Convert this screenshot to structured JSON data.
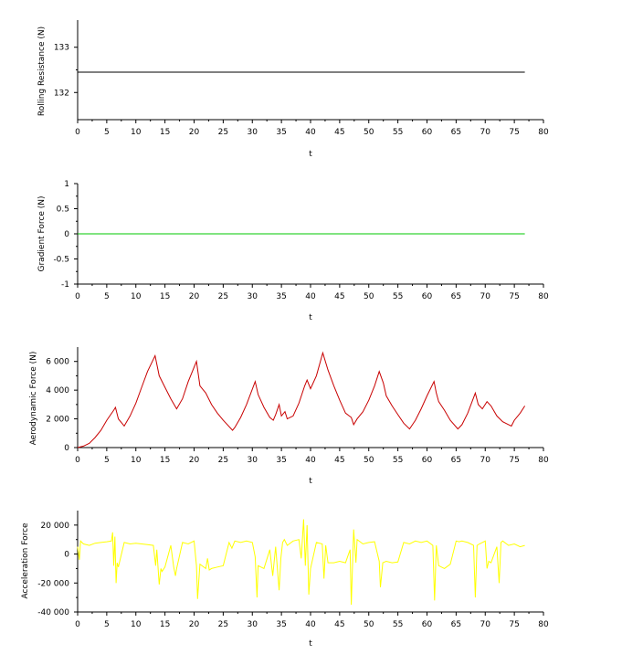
{
  "chart_data": [
    {
      "type": "line",
      "xlabel": "t",
      "ylabel": "Rolling Resistance (N)",
      "xlim": [
        0,
        80
      ],
      "ylim": [
        131.4,
        133.6
      ],
      "xticks": [
        0,
        5,
        10,
        15,
        20,
        25,
        30,
        35,
        40,
        45,
        50,
        55,
        60,
        65,
        70,
        75,
        80
      ],
      "yticks": [
        132,
        133
      ],
      "ytick_labels": [
        "132",
        "133"
      ],
      "color": "#000000",
      "series": [
        {
          "x": [
            0,
            76.8
          ],
          "y": [
            132.45,
            132.45
          ]
        }
      ]
    },
    {
      "type": "line",
      "xlabel": "t",
      "ylabel": "Gradient Force (N)",
      "xlim": [
        0,
        80
      ],
      "ylim": [
        -1,
        1
      ],
      "xticks": [
        0,
        5,
        10,
        15,
        20,
        25,
        30,
        35,
        40,
        45,
        50,
        55,
        60,
        65,
        70,
        75,
        80
      ],
      "yticks": [
        -1,
        -0.5,
        0,
        0.5,
        1
      ],
      "ytick_labels": [
        "-1",
        "-0.5",
        "0",
        "0.5",
        "1"
      ],
      "color": "#00c800",
      "series": [
        {
          "x": [
            0,
            76.8
          ],
          "y": [
            0,
            0
          ]
        }
      ]
    },
    {
      "type": "line",
      "xlabel": "t",
      "ylabel": "Aerodynamic Force (N)",
      "xlim": [
        0,
        80
      ],
      "ylim": [
        0,
        7000
      ],
      "xticks": [
        0,
        5,
        10,
        15,
        20,
        25,
        30,
        35,
        40,
        45,
        50,
        55,
        60,
        65,
        70,
        75,
        80
      ],
      "yticks": [
        0,
        2000,
        4000,
        6000
      ],
      "ytick_labels": [
        "0",
        "2 000",
        "4 000",
        "6 000"
      ],
      "color": "#c80000",
      "series": [
        {
          "x": [
            0,
            1,
            2,
            3,
            4,
            5,
            6.2,
            6.5,
            7,
            8,
            9,
            10,
            11,
            12,
            13.3,
            14,
            15,
            16,
            17,
            18,
            19,
            20.4,
            21,
            22,
            23,
            24,
            25,
            26.6,
            27,
            28,
            29,
            30.5,
            31,
            32,
            33,
            33.6,
            34,
            34.6,
            35,
            35.6,
            36,
            37,
            38,
            39,
            39.4,
            40,
            41,
            42.1,
            43,
            44,
            45,
            46,
            47,
            47.4,
            48,
            49,
            50,
            51,
            51.8,
            52.5,
            53,
            54,
            55,
            56,
            57,
            58,
            59,
            60,
            61.2,
            61.6,
            62,
            63,
            64,
            65.3,
            66,
            67,
            68.3,
            68.8,
            69.5,
            70.3,
            71,
            72,
            73,
            74,
            74.5,
            75,
            76,
            76.8
          ],
          "y": [
            0,
            100,
            300,
            700,
            1200,
            1900,
            2600,
            2800,
            2000,
            1500,
            2200,
            3100,
            4200,
            5300,
            6400,
            5000,
            4200,
            3400,
            2700,
            3400,
            4600,
            6000,
            4300,
            3800,
            3000,
            2400,
            1900,
            1200,
            1400,
            2100,
            3000,
            4600,
            3700,
            2800,
            2100,
            1900,
            2300,
            3000,
            2200,
            2500,
            2000,
            2200,
            3100,
            4300,
            4700,
            4100,
            5000,
            6600,
            5400,
            4300,
            3300,
            2400,
            2100,
            1600,
            2000,
            2500,
            3300,
            4300,
            5300,
            4500,
            3600,
            2900,
            2300,
            1700,
            1300,
            1900,
            2700,
            3600,
            4600,
            3800,
            3200,
            2600,
            1900,
            1300,
            1600,
            2400,
            3800,
            3000,
            2700,
            3200,
            2900,
            2200,
            1800,
            1600,
            1500,
            1900,
            2400,
            2900
          ]
        }
      ]
    },
    {
      "type": "line",
      "xlabel": "t",
      "ylabel": "Acceleration Force",
      "xlim": [
        0,
        80
      ],
      "ylim": [
        -40000,
        30000
      ],
      "xticks": [
        0,
        5,
        10,
        15,
        20,
        25,
        30,
        35,
        40,
        45,
        50,
        55,
        60,
        65,
        70,
        75,
        80
      ],
      "yticks": [
        -40000,
        -20000,
        0,
        20000
      ],
      "ytick_labels": [
        "-40 000",
        "-20 000",
        "0",
        "20 000"
      ],
      "color": "#ffff00",
      "series": [
        {
          "x": [
            0,
            0.3,
            0.5,
            1,
            2,
            3,
            4,
            5,
            5.8,
            6,
            6.2,
            6.4,
            6.6,
            6.8,
            7,
            8,
            9,
            10,
            11,
            12,
            13,
            13.4,
            13.6,
            14,
            14.3,
            14.5,
            15,
            16,
            16.5,
            16.8,
            17,
            18,
            19,
            20,
            20.4,
            20.6,
            21,
            22,
            22.3,
            22.6,
            23,
            24,
            25,
            26,
            26.5,
            27,
            28,
            29,
            30,
            30.5,
            30.8,
            31,
            32,
            33,
            33.5,
            34,
            34.6,
            34.9,
            35.2,
            35.5,
            36,
            37,
            38,
            38.4,
            38.8,
            39.1,
            39.4,
            39.7,
            40,
            41,
            42,
            42.3,
            42.6,
            43,
            44,
            45,
            46,
            46.8,
            47,
            47.4,
            47.8,
            48,
            49,
            50,
            51,
            51.8,
            52,
            52.4,
            53,
            54,
            55,
            56,
            57,
            58,
            59,
            60,
            61,
            61.3,
            61.6,
            62,
            63,
            64,
            65,
            65.5,
            66,
            67,
            68,
            68.3,
            68.6,
            69,
            70,
            70.3,
            70.6,
            71,
            72,
            72.4,
            72.7,
            73,
            74,
            75,
            76,
            76.8
          ],
          "y": [
            5000,
            -4000,
            9000,
            7000,
            6000,
            7500,
            8000,
            8500,
            9000,
            15000,
            -8000,
            12000,
            -20000,
            -6000,
            -9000,
            8000,
            7000,
            7500,
            7000,
            6500,
            6000,
            -8000,
            3000,
            -21000,
            -10000,
            -12000,
            -9000,
            6000,
            -9000,
            -15000,
            -10000,
            8000,
            7000,
            9000,
            -8000,
            -31000,
            -7000,
            -10000,
            -3000,
            -11000,
            -10000,
            -9000,
            -8000,
            8000,
            4000,
            9000,
            8000,
            9000,
            8000,
            -2000,
            -30000,
            -8000,
            -10000,
            3000,
            -15000,
            5000,
            -25000,
            -3000,
            8000,
            10000,
            6000,
            9000,
            10000,
            -3000,
            24000,
            -8000,
            20000,
            -28000,
            -10000,
            8000,
            7000,
            -17000,
            6000,
            -6000,
            -6000,
            -5000,
            -6000,
            3000,
            -35000,
            17000,
            -6000,
            10000,
            7000,
            8000,
            8500,
            -5000,
            -23000,
            -6000,
            -5000,
            -6000,
            -5500,
            8000,
            7000,
            9000,
            8000,
            9000,
            6000,
            -32000,
            6000,
            -8000,
            -10000,
            -7000,
            9000,
            8500,
            9000,
            8000,
            6000,
            -30000,
            6000,
            7000,
            9000,
            -10000,
            -5000,
            -6000,
            5000,
            -20000,
            8000,
            9000,
            6000,
            7000,
            5000,
            6000
          ]
        }
      ]
    }
  ]
}
